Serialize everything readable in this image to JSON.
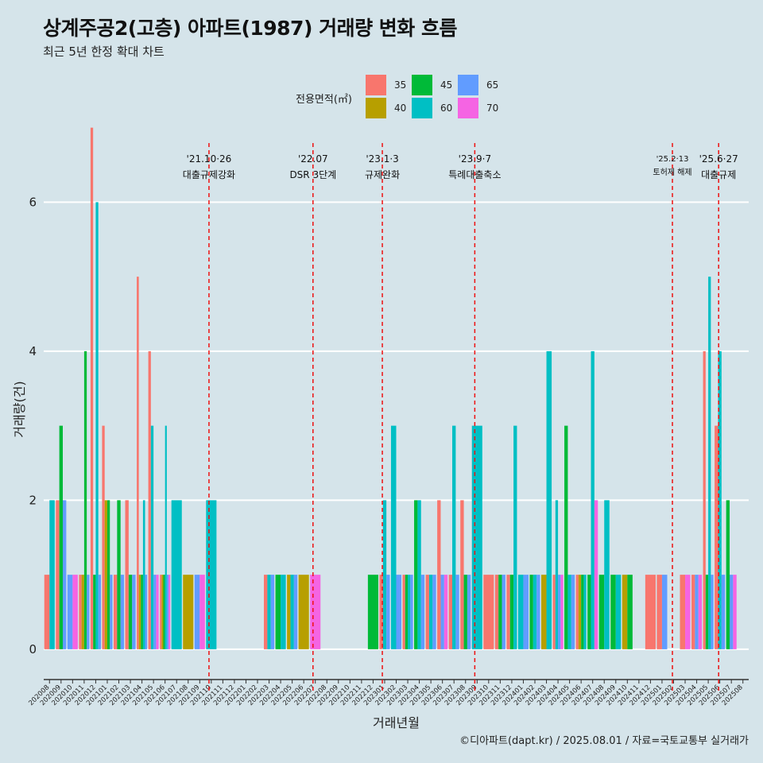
{
  "title": "상계주공2(고층) 아파트(1987) 거래량 변화 흐름",
  "subtitle": "최근 5년 한정 확대 차트",
  "caption": "©디아파트(dapt.kr) / 2025.08.01 / 자료=국토교통부 실거래가",
  "colors": {
    "background": "#d5e4ea",
    "grid": "#ffffff",
    "event_line": "#ee1111"
  },
  "legend": {
    "title": "전용면적(㎡)",
    "items": [
      {
        "label": "35",
        "color": "#f8766d"
      },
      {
        "label": "40",
        "color": "#b79f00"
      },
      {
        "label": "45",
        "color": "#00ba38"
      },
      {
        "label": "60",
        "color": "#00bfc4"
      },
      {
        "label": "65",
        "color": "#619cff"
      },
      {
        "label": "70",
        "color": "#f564e3"
      }
    ]
  },
  "chart_data": {
    "type": "bar",
    "title": "상계주공2(고층) 아파트(1987) 거래량 변화 흐름",
    "subtitle": "최근 5년 한정 확대 차트",
    "xlabel": "거래년월",
    "ylabel": "거래량(건)",
    "ylim": [
      -0.3,
      6.9
    ],
    "yticks": [
      0,
      2,
      4,
      6
    ],
    "categories": [
      "202008",
      "202009",
      "202010",
      "202011",
      "202012",
      "202101",
      "202102",
      "202103",
      "202104",
      "202105",
      "202106",
      "202107",
      "202108",
      "202109",
      "202110",
      "202111",
      "202112",
      "202201",
      "202202",
      "202203",
      "202204",
      "202205",
      "202206",
      "202207",
      "202208",
      "202209",
      "202210",
      "202211",
      "202212",
      "202301",
      "202302",
      "202303",
      "202304",
      "202305",
      "202306",
      "202307",
      "202308",
      "202309",
      "202310",
      "202311",
      "202312",
      "202401",
      "202402",
      "202403",
      "202404",
      "202405",
      "202406",
      "202407",
      "202408",
      "202409",
      "202410",
      "202411",
      "202412",
      "202501",
      "202502",
      "202503",
      "202504",
      "202505",
      "202506",
      "202507",
      "202508"
    ],
    "series": [
      {
        "name": "35",
        "color": "#f8766d",
        "values": [
          1,
          2,
          0,
          1,
          7,
          3,
          1,
          2,
          5,
          4,
          1,
          0,
          0,
          0,
          0,
          0,
          0,
          0,
          0,
          1,
          0,
          0,
          0,
          0,
          0,
          0,
          0,
          0,
          0,
          1,
          0,
          1,
          0,
          1,
          2,
          1,
          2,
          0,
          1,
          1,
          1,
          0,
          0,
          0,
          1,
          0,
          1,
          0,
          0,
          0,
          0,
          0,
          1,
          1,
          0,
          1,
          1,
          4,
          3,
          0,
          0
        ]
      },
      {
        "name": "40",
        "color": "#b79f00",
        "values": [
          0,
          0,
          0,
          1,
          0,
          2,
          0,
          0,
          1,
          0,
          1,
          0,
          1,
          0,
          0,
          0,
          0,
          0,
          0,
          0,
          0,
          1,
          1,
          0,
          0,
          0,
          0,
          0,
          0,
          0,
          0,
          0,
          0,
          0,
          0,
          0,
          0,
          0,
          0,
          0,
          0,
          0,
          0,
          1,
          0,
          0,
          1,
          0,
          0,
          0,
          1,
          0,
          0,
          0,
          0,
          0,
          0,
          0,
          0,
          0,
          0
        ]
      },
      {
        "name": "45",
        "color": "#00ba38",
        "values": [
          0,
          3,
          0,
          4,
          1,
          2,
          2,
          1,
          1,
          0,
          1,
          0,
          0,
          0,
          0,
          0,
          0,
          0,
          0,
          0,
          1,
          0,
          0,
          0,
          0,
          0,
          0,
          0,
          1,
          0,
          0,
          1,
          2,
          0,
          0,
          0,
          1,
          0,
          0,
          1,
          1,
          0,
          1,
          0,
          0,
          3,
          1,
          1,
          1,
          1,
          1,
          0,
          0,
          0,
          0,
          0,
          0,
          1,
          0,
          2,
          0
        ]
      },
      {
        "name": "60",
        "color": "#00bfc4",
        "values": [
          2,
          0,
          0,
          0,
          6,
          0,
          0,
          0,
          2,
          3,
          3,
          2,
          0,
          0,
          2,
          0,
          0,
          0,
          0,
          1,
          1,
          1,
          0,
          0,
          0,
          0,
          0,
          0,
          0,
          2,
          3,
          1,
          2,
          1,
          0,
          3,
          0,
          3,
          0,
          0,
          3,
          1,
          1,
          4,
          2,
          1,
          1,
          4,
          2,
          1,
          0,
          0,
          0,
          0,
          0,
          0,
          0,
          5,
          4,
          0,
          0
        ]
      },
      {
        "name": "65",
        "color": "#619cff",
        "values": [
          0,
          2,
          1,
          1,
          1,
          1,
          1,
          1,
          1,
          1,
          1,
          0,
          0,
          1,
          0,
          0,
          0,
          0,
          0,
          1,
          0,
          1,
          0,
          0,
          0,
          0,
          0,
          0,
          0,
          1,
          1,
          1,
          1,
          1,
          1,
          1,
          1,
          0,
          0,
          1,
          0,
          1,
          1,
          0,
          1,
          1,
          0,
          0,
          0,
          0,
          0,
          0,
          0,
          1,
          0,
          0,
          1,
          1,
          1,
          1,
          0
        ]
      },
      {
        "name": "70",
        "color": "#f564e3",
        "values": [
          0,
          0,
          1,
          0,
          0,
          0,
          0,
          0,
          0,
          1,
          1,
          0,
          0,
          1,
          0,
          0,
          0,
          0,
          0,
          0,
          0,
          0,
          0,
          1,
          0,
          0,
          0,
          0,
          0,
          0,
          0,
          0,
          0,
          0,
          1,
          0,
          0,
          0,
          0,
          0,
          0,
          0,
          0,
          0,
          1,
          0,
          0,
          2,
          0,
          0,
          0,
          0,
          0,
          0,
          0,
          1,
          1,
          0,
          0,
          1,
          0
        ]
      }
    ],
    "events": [
      {
        "date": "'21.10·26",
        "label": "대출규제강화",
        "x": 14.3
      },
      {
        "date": "'22.07",
        "label": "DSR 3단계",
        "x": 23.3
      },
      {
        "date": "'23.1·3",
        "label": "규제완화",
        "x": 29.3
      },
      {
        "date": "'23.9·7",
        "label": "특례대출축소",
        "x": 37.3
      },
      {
        "date": "'25.2·13",
        "label": "토허제 해제",
        "x": 54.4
      },
      {
        "date": "'25.6·27",
        "label": "대출규제",
        "x": 58.4
      }
    ]
  }
}
